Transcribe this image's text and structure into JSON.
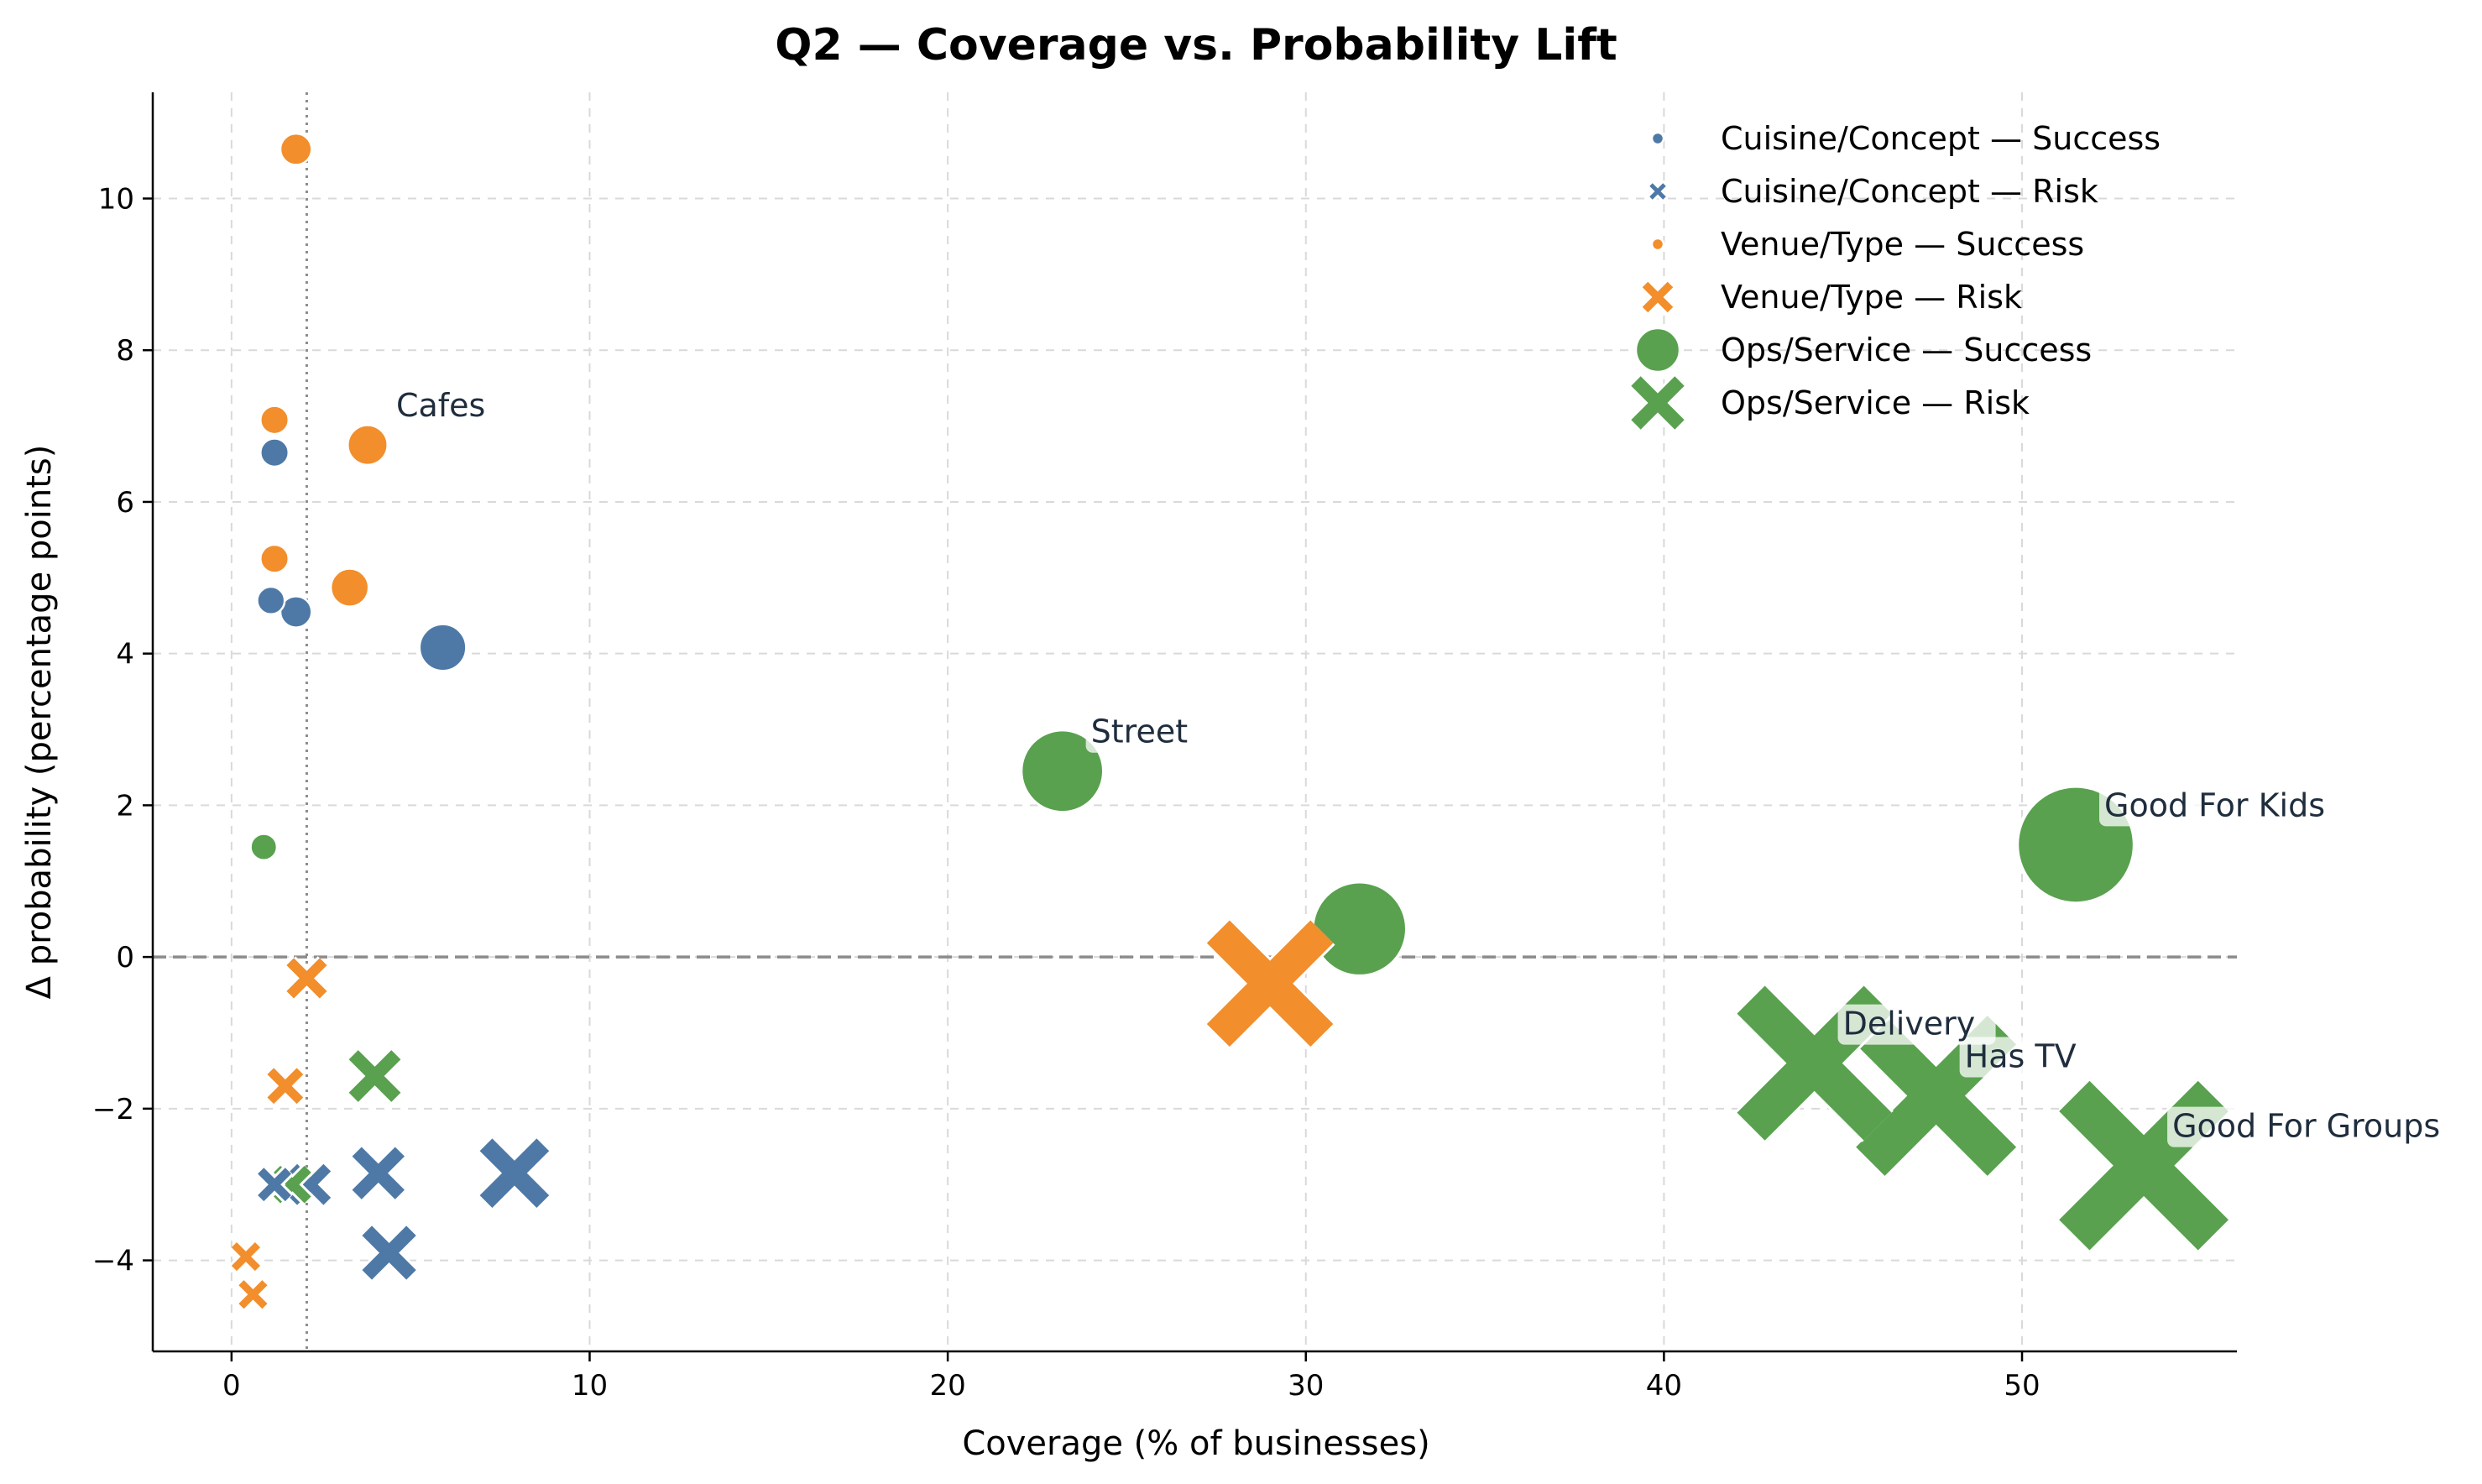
{
  "chart_data": {
    "type": "scatter",
    "title": "Q2 — Coverage vs. Probability Lift",
    "xlabel": "Coverage (% of businesses)",
    "ylabel": "Δ probability (percentage points)",
    "xlim": [
      -2.2,
      56
    ],
    "ylim": [
      -5.2,
      11.4
    ],
    "xticks": [
      0,
      10,
      20,
      30,
      40,
      50
    ],
    "yticks": [
      -4,
      -2,
      0,
      2,
      4,
      6,
      8,
      10
    ],
    "xtick_labels": [
      "0",
      "10",
      "20",
      "30",
      "40",
      "50"
    ],
    "ytick_labels": [
      "−4",
      "−2",
      "0",
      "2",
      "4",
      "6",
      "8",
      "10"
    ],
    "grid": true,
    "legend_position": "top-right",
    "reference_lines": {
      "horizontal_y": 0,
      "vertical_x": 2.1
    },
    "colors": {
      "Cuisine/Concept": "#4e79a7",
      "Venue/Type": "#f28e2b",
      "Ops/Service": "#59a14f"
    },
    "legend": [
      {
        "label": "Cuisine/Concept — Success",
        "group": "Cuisine/Concept",
        "kind": "success"
      },
      {
        "label": "Cuisine/Concept — Risk",
        "group": "Cuisine/Concept",
        "kind": "risk"
      },
      {
        "label": "Venue/Type — Success",
        "group": "Venue/Type",
        "kind": "success"
      },
      {
        "label": "Venue/Type — Risk",
        "group": "Venue/Type",
        "kind": "risk"
      },
      {
        "label": "Ops/Service — Success",
        "group": "Ops/Service",
        "kind": "success"
      },
      {
        "label": "Ops/Service — Risk",
        "group": "Ops/Service",
        "kind": "risk"
      }
    ],
    "series": [
      {
        "group": "Cuisine/Concept",
        "kind": "success",
        "points": [
          {
            "x": 1.2,
            "y": 6.65
          },
          {
            "x": 1.1,
            "y": 4.7
          },
          {
            "x": 1.8,
            "y": 4.55
          },
          {
            "x": 5.9,
            "y": 4.08
          }
        ]
      },
      {
        "group": "Cuisine/Concept",
        "kind": "risk",
        "points": [
          {
            "x": 1.2,
            "y": -3.0
          },
          {
            "x": 2.2,
            "y": -3.0
          },
          {
            "x": 4.1,
            "y": -2.85
          },
          {
            "x": 4.4,
            "y": -3.9
          },
          {
            "x": 7.9,
            "y": -2.85
          }
        ]
      },
      {
        "group": "Venue/Type",
        "kind": "success",
        "points": [
          {
            "x": 1.8,
            "y": 10.65
          },
          {
            "x": 1.2,
            "y": 7.08
          },
          {
            "x": 3.8,
            "y": 6.75,
            "label": "Cafes"
          },
          {
            "x": 1.2,
            "y": 5.25
          },
          {
            "x": 3.3,
            "y": 4.87
          }
        ]
      },
      {
        "group": "Venue/Type",
        "kind": "risk",
        "points": [
          {
            "x": 2.1,
            "y": -0.28
          },
          {
            "x": 1.5,
            "y": -1.7
          },
          {
            "x": 0.4,
            "y": -3.95
          },
          {
            "x": 0.6,
            "y": -4.45
          },
          {
            "x": 29.0,
            "y": -0.35
          }
        ]
      },
      {
        "group": "Ops/Service",
        "kind": "success",
        "points": [
          {
            "x": 0.9,
            "y": 1.45
          },
          {
            "x": 23.2,
            "y": 2.45,
            "label": "Street"
          },
          {
            "x": 31.5,
            "y": 0.37
          },
          {
            "x": 51.5,
            "y": 1.48,
            "label": "Good For Kids"
          }
        ]
      },
      {
        "group": "Ops/Service",
        "kind": "risk",
        "points": [
          {
            "x": 4.0,
            "y": -1.57
          },
          {
            "x": 1.7,
            "y": -3.0
          },
          {
            "x": 44.2,
            "y": -1.4,
            "label": "Delivery"
          },
          {
            "x": 47.6,
            "y": -1.83,
            "label": "Has TV"
          },
          {
            "x": 53.4,
            "y": -2.75,
            "label": "Good For Groups"
          }
        ]
      }
    ]
  }
}
